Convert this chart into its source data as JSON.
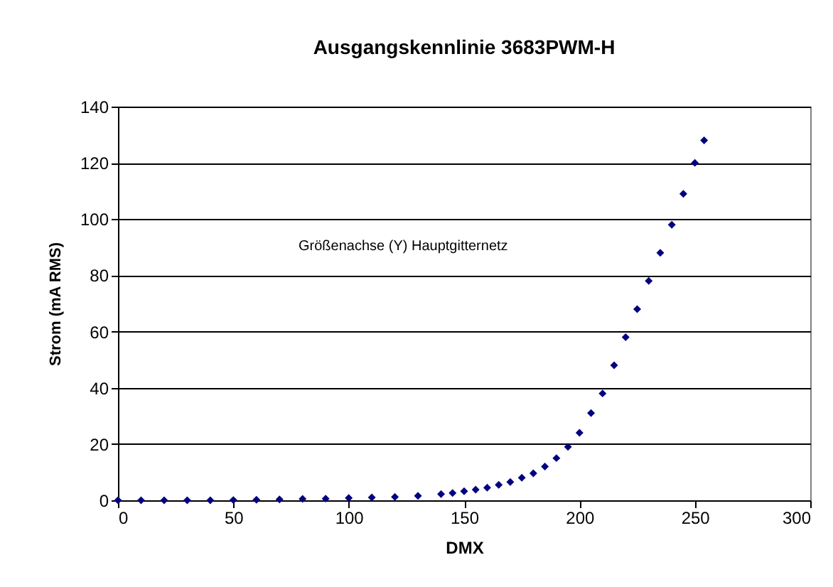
{
  "chart_data": {
    "type": "scatter",
    "title": "Ausgangskennlinie 3683PWM-H",
    "xlabel": "DMX",
    "ylabel": "Strom (mA RMS)",
    "annotations": [
      "Größenachse (Y) Hauptgitternetz"
    ],
    "x": [
      0,
      10,
      20,
      30,
      40,
      50,
      60,
      70,
      80,
      90,
      100,
      110,
      120,
      130,
      140,
      145,
      150,
      155,
      160,
      165,
      170,
      175,
      180,
      185,
      190,
      195,
      200,
      205,
      210,
      215,
      220,
      225,
      230,
      235,
      240,
      245,
      250,
      254
    ],
    "series": [
      {
        "color": "#000080",
        "values": [
          0,
          0,
          0,
          0,
          0,
          0.1,
          0.2,
          0.3,
          0.5,
          0.6,
          0.8,
          1,
          1.2,
          1.6,
          2.2,
          2.6,
          3.2,
          3.8,
          4.5,
          5.5,
          6.5,
          8,
          9.6,
          12,
          15,
          19,
          24,
          31,
          38,
          48,
          58,
          68,
          78,
          88,
          98,
          109,
          120,
          128
        ]
      }
    ],
    "xlim": [
      0,
      300
    ],
    "xticks": [
      0,
      50,
      100,
      150,
      200,
      250,
      300
    ],
    "ylim": [
      0,
      140
    ],
    "yticks": [
      0,
      20,
      40,
      60,
      80,
      100,
      120,
      140
    ],
    "grid": "y",
    "marker": "diamond"
  }
}
